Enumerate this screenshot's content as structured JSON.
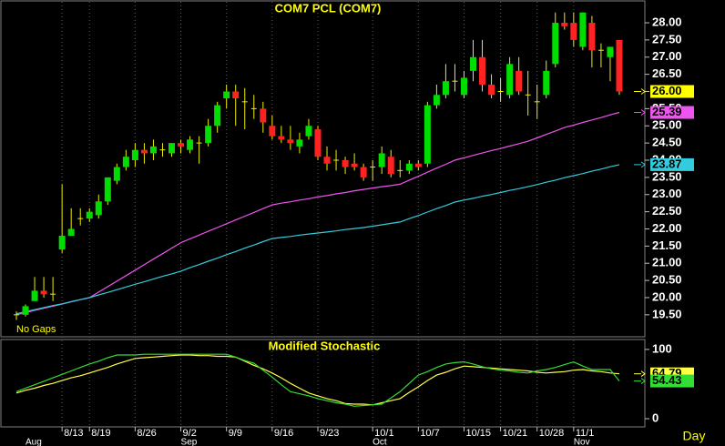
{
  "chart_data": [
    {
      "type": "candlestick",
      "title": "COM7 PCL  (COM7)",
      "note": "No Gaps",
      "categories": [
        null,
        null,
        null,
        null,
        null,
        "8/13",
        null,
        null,
        "8/19",
        null,
        null,
        null,
        null,
        "8/26",
        null,
        null,
        null,
        null,
        "9/2",
        null,
        null,
        null,
        null,
        "9/9",
        null,
        null,
        null,
        null,
        "9/16",
        null,
        null,
        null,
        null,
        "9/23",
        null,
        null,
        null,
        null,
        null,
        "10/1",
        null,
        null,
        null,
        null,
        "10/7",
        null,
        null,
        null,
        null,
        "10/15",
        null,
        null,
        null,
        "10/21",
        null,
        null,
        null,
        "10/28",
        null,
        null,
        null,
        "11/1",
        null,
        null,
        null,
        null,
        null
      ],
      "open": [
        19.5,
        19.5,
        19.9,
        20.2,
        20.1,
        21.4,
        21.8,
        22.3,
        22.3,
        22.4,
        22.8,
        23.4,
        23.8,
        24.0,
        24.3,
        24.2,
        24.3,
        24.2,
        24.5,
        24.3,
        24.5,
        24.5,
        25.0,
        25.8,
        26.0,
        25.7,
        25.5,
        25.5,
        25.0,
        24.7,
        24.6,
        24.4,
        24.7,
        24.9,
        24.1,
        24.0,
        24.0,
        23.9,
        23.8,
        23.8,
        23.8,
        24.1,
        23.7,
        23.7,
        23.9,
        23.9,
        25.6,
        25.9,
        26.3,
        25.9,
        26.6,
        27.0,
        26.2,
        26.0,
        25.9,
        26.6,
        25.9,
        25.7,
        25.9,
        26.8,
        28.0,
        28.0,
        27.3,
        28.0,
        27.2,
        27.0,
        27.5
      ],
      "high": [
        19.6,
        19.8,
        20.6,
        20.6,
        20.6,
        23.3,
        22.6,
        22.6,
        22.6,
        23.0,
        23.5,
        23.9,
        24.3,
        24.5,
        24.5,
        24.6,
        24.5,
        24.5,
        24.6,
        24.7,
        24.7,
        25.2,
        25.7,
        26.2,
        26.2,
        26.1,
        25.9,
        25.7,
        25.3,
        25.0,
        25.0,
        24.8,
        25.2,
        25.0,
        24.4,
        24.3,
        24.1,
        24.2,
        23.9,
        24.0,
        24.4,
        24.3,
        24.0,
        24.0,
        24.0,
        25.7,
        26.2,
        26.8,
        26.8,
        26.6,
        27.5,
        27.5,
        26.5,
        26.4,
        27.0,
        27.0,
        26.6,
        26.2,
        26.9,
        28.3,
        28.3,
        28.3,
        28.3,
        28.2,
        27.4,
        27.3,
        27.5
      ],
      "low": [
        19.35,
        19.45,
        19.9,
        20.0,
        19.9,
        21.3,
        21.8,
        22.1,
        22.2,
        22.3,
        22.7,
        23.3,
        23.7,
        23.8,
        23.9,
        24.0,
        24.1,
        24.1,
        24.2,
        24.2,
        23.9,
        24.4,
        24.8,
        25.5,
        25.0,
        24.9,
        25.2,
        24.8,
        24.6,
        24.5,
        24.3,
        24.2,
        24.6,
        24.0,
        23.7,
        23.7,
        23.6,
        23.7,
        23.4,
        23.4,
        23.6,
        23.5,
        23.5,
        23.6,
        23.7,
        23.8,
        25.5,
        25.8,
        26.0,
        25.8,
        26.3,
        26.0,
        25.8,
        25.7,
        25.8,
        25.9,
        25.3,
        25.2,
        25.8,
        26.7,
        27.8,
        27.3,
        27.2,
        26.7,
        26.7,
        26.3,
        25.9
      ],
      "close": [
        19.5,
        19.75,
        20.2,
        20.1,
        20.1,
        21.8,
        22.0,
        22.3,
        22.5,
        22.8,
        23.5,
        23.8,
        24.1,
        24.3,
        24.2,
        24.4,
        24.3,
        24.5,
        24.4,
        24.6,
        24.5,
        25.0,
        25.6,
        26.0,
        25.8,
        25.7,
        25.5,
        25.1,
        24.7,
        24.6,
        24.5,
        24.6,
        25.0,
        24.1,
        23.9,
        24.0,
        23.8,
        23.8,
        23.5,
        23.8,
        24.2,
        23.6,
        23.7,
        23.9,
        23.8,
        25.6,
        25.9,
        26.3,
        26.3,
        26.4,
        27.0,
        26.2,
        25.9,
        26.0,
        26.8,
        26.0,
        25.9,
        25.7,
        26.6,
        28.0,
        27.9,
        27.5,
        28.3,
        27.2,
        27.2,
        27.3,
        26.0
      ],
      "close_label": "26.00",
      "close_label_color": "#ffff00",
      "up_color": "#00dd00",
      "down_color": "#ff2222",
      "wick_color": "#eeee00",
      "lines": [
        {
          "color": "#ee55ee",
          "last_label": "25.39",
          "values": [
            19.5,
            19.56,
            19.63,
            19.69,
            19.75,
            19.81,
            19.88,
            19.94,
            20.0,
            20.16,
            20.32,
            20.48,
            20.64,
            20.8,
            20.96,
            21.12,
            21.28,
            21.44,
            21.6,
            21.71,
            21.82,
            21.93,
            22.04,
            22.15,
            22.26,
            22.37,
            22.48,
            22.59,
            22.7,
            22.75,
            22.79,
            22.84,
            22.88,
            22.93,
            22.97,
            23.02,
            23.06,
            23.11,
            23.15,
            23.19,
            23.23,
            23.26,
            23.3,
            23.42,
            23.53,
            23.65,
            23.77,
            23.88,
            24.0,
            24.07,
            24.14,
            24.21,
            24.28,
            24.34,
            24.41,
            24.48,
            24.55,
            24.65,
            24.75,
            24.85,
            24.95,
            25.02,
            25.1,
            25.17,
            25.24,
            25.32,
            25.39
          ]
        },
        {
          "color": "#33ccdd",
          "last_label": "23.87",
          "values": [
            19.53,
            19.59,
            19.65,
            19.71,
            19.77,
            19.82,
            19.88,
            19.94,
            20.0,
            20.08,
            20.15,
            20.23,
            20.31,
            20.39,
            20.46,
            20.54,
            20.62,
            20.69,
            20.77,
            20.87,
            20.96,
            21.06,
            21.15,
            21.25,
            21.34,
            21.44,
            21.53,
            21.63,
            21.72,
            21.75,
            21.78,
            21.82,
            21.85,
            21.88,
            21.91,
            21.94,
            21.98,
            22.01,
            22.04,
            22.08,
            22.12,
            22.16,
            22.2,
            22.3,
            22.39,
            22.49,
            22.59,
            22.68,
            22.78,
            22.84,
            22.89,
            22.95,
            23.0,
            23.06,
            23.12,
            23.17,
            23.23,
            23.29,
            23.36,
            23.42,
            23.49,
            23.55,
            23.61,
            23.68,
            23.74,
            23.81,
            23.87
          ]
        }
      ],
      "ylim": [
        18.86,
        28.61
      ],
      "yticks": [
        {
          "value": 19.5,
          "label": "19.50"
        },
        {
          "value": 20,
          "label": "20.00"
        },
        {
          "value": 20.5,
          "label": "20.50"
        },
        {
          "value": 21,
          "label": "21.00"
        },
        {
          "value": 21.5,
          "label": "21.50"
        },
        {
          "value": 22,
          "label": "22.00"
        },
        {
          "value": 22.5,
          "label": "22.50"
        },
        {
          "value": 23,
          "label": "23.00"
        },
        {
          "value": 23.5,
          "label": "23.50"
        },
        {
          "value": 24,
          "label": "24.00"
        },
        {
          "value": 24.5,
          "label": "24.50"
        },
        {
          "value": 25,
          "label": "25.00"
        },
        {
          "value": 25.5,
          "label": "25.50"
        },
        {
          "value": 26,
          "label": "26.00"
        },
        {
          "value": 26.5,
          "label": "26.50"
        },
        {
          "value": 27,
          "label": "27.00"
        },
        {
          "value": 27.5,
          "label": "27.50"
        },
        {
          "value": 28,
          "label": "28.00"
        }
      ]
    },
    {
      "type": "line",
      "title": "Modified  Stochastic",
      "x_label": "Day",
      "categories": [
        null,
        "Aug",
        null,
        null,
        null,
        null,
        null,
        null,
        null,
        null,
        null,
        null,
        null,
        null,
        null,
        null,
        null,
        null,
        "Sep",
        null,
        null,
        null,
        null,
        null,
        null,
        null,
        null,
        null,
        null,
        null,
        null,
        null,
        null,
        null,
        null,
        null,
        null,
        null,
        null,
        "Oct",
        null,
        null,
        null,
        null,
        null,
        null,
        null,
        null,
        null,
        null,
        null,
        null,
        null,
        null,
        null,
        null,
        null,
        null,
        null,
        null,
        null,
        "Nov",
        null,
        null,
        null,
        null,
        null
      ],
      "series": [
        {
          "color": "#ffff44",
          "last_label": "64.79",
          "values": [
            37,
            41,
            44,
            48,
            51,
            55,
            59,
            62,
            66,
            70,
            74,
            79,
            83,
            87,
            88,
            89,
            90,
            91,
            92,
            92,
            91,
            91,
            90,
            90,
            89,
            83,
            77,
            72,
            66,
            59,
            51,
            44,
            37,
            33,
            29,
            26,
            22,
            21,
            21,
            20,
            23,
            26,
            29,
            38,
            46,
            55,
            63,
            67,
            72,
            76,
            75,
            74,
            73,
            72,
            71,
            70,
            69,
            67,
            66,
            67,
            68,
            70,
            71,
            69,
            68,
            66,
            64.79
          ]
        },
        {
          "color": "#33dd33",
          "last_label": "54.43",
          "values": [
            39,
            44,
            49,
            54,
            59,
            64,
            69,
            74,
            79,
            83,
            88,
            92,
            92,
            92,
            93,
            93,
            93,
            93,
            93,
            93,
            93,
            93,
            93,
            93,
            89,
            84,
            80,
            70,
            60,
            49,
            39,
            36,
            33,
            29,
            26,
            23,
            21,
            18,
            19,
            20,
            21,
            30,
            39,
            51,
            63,
            68,
            74,
            79,
            81,
            82,
            79,
            75,
            72,
            70,
            69,
            67,
            66,
            69,
            71,
            74,
            78,
            82,
            76,
            71,
            71,
            71,
            54.43
          ]
        }
      ],
      "ylim": [
        -10.5,
        113
      ],
      "yticks": [
        0,
        100
      ]
    }
  ]
}
